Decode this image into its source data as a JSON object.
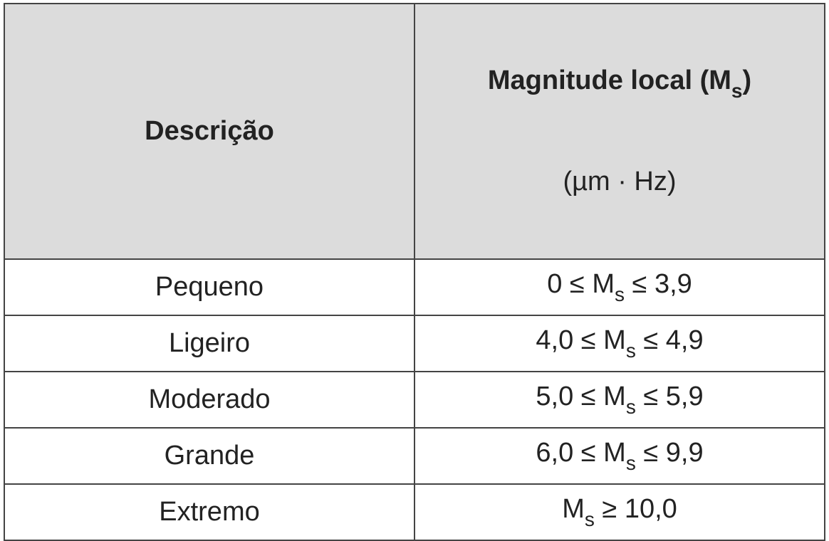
{
  "header": {
    "description": "Descrição",
    "magnitude": [
      {
        "text": "Magnitude local (M"
      },
      {
        "sub": "s"
      },
      {
        "text": ")"
      }
    ],
    "unit": "(µm · Hz)"
  },
  "rows": [
    {
      "description": "Pequeno",
      "range": [
        {
          "text": "0 ≤ M"
        },
        {
          "sub": "s"
        },
        {
          "text": " ≤ 3,9"
        }
      ]
    },
    {
      "description": "Ligeiro",
      "range": [
        {
          "text": "4,0 ≤ M"
        },
        {
          "sub": "s"
        },
        {
          "text": " ≤ 4,9"
        }
      ]
    },
    {
      "description": "Moderado",
      "range": [
        {
          "text": "5,0 ≤ M"
        },
        {
          "sub": "s"
        },
        {
          "text": " ≤ 5,9"
        }
      ]
    },
    {
      "description": "Grande",
      "range": [
        {
          "text": "6,0 ≤ M"
        },
        {
          "sub": "s"
        },
        {
          "text": " ≤ 9,9"
        }
      ]
    },
    {
      "description": "Extremo",
      "range": [
        {
          "text": "M"
        },
        {
          "sub": "s"
        },
        {
          "text": " ≥ 10,0"
        }
      ]
    }
  ]
}
